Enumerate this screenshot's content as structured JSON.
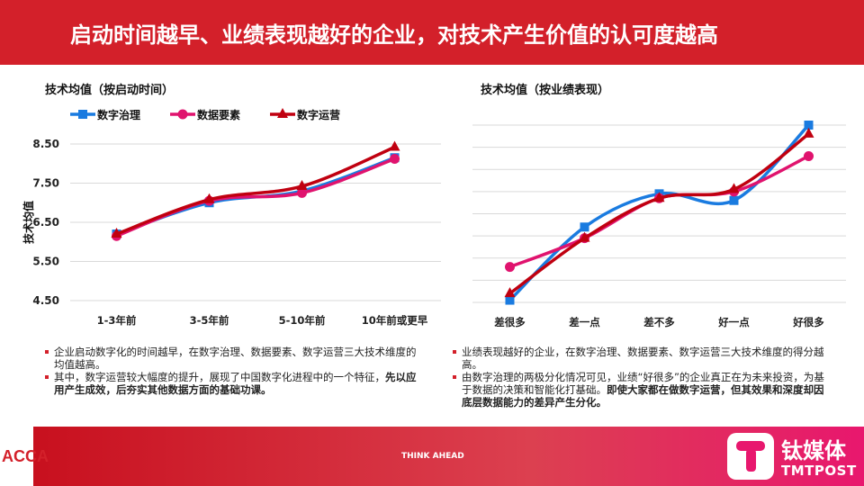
{
  "header": {
    "title": "启动时间越早、业绩表现越好的企业，对技术产生价值的认可度越高"
  },
  "colors": {
    "blue": "#1a7be0",
    "pink": "#e0136e",
    "red": "#c00010",
    "header": "#d3202a"
  },
  "chart_data": [
    {
      "type": "line",
      "title": "技术均值（按启动时间）",
      "ylabel": "技术均值",
      "ylim": [
        4.5,
        8.5
      ],
      "yticks": [
        "8.50",
        "7.50",
        "6.50",
        "5.50",
        "4.50"
      ],
      "grid": true,
      "legend": "top",
      "categories": [
        "1-3年前",
        "3-5年前",
        "5-10年前",
        "10年前或更早"
      ],
      "series": [
        {
          "name": "数字治理",
          "marker": "square",
          "values": [
            6.2,
            7.0,
            7.3,
            8.15
          ]
        },
        {
          "name": "数据要素",
          "marker": "circle",
          "values": [
            6.15,
            7.05,
            7.25,
            8.12
          ]
        },
        {
          "name": "数字运营",
          "marker": "triangle",
          "values": [
            6.2,
            7.08,
            7.42,
            8.42
          ]
        }
      ]
    },
    {
      "type": "line",
      "title": "技术均值（按业绩表现）",
      "grid": true,
      "ylim": [
        0,
        8
      ],
      "categories": [
        "差很多",
        "差一点",
        "差不多",
        "好一点",
        "好很多"
      ],
      "series": [
        {
          "marker": "square",
          "values": [
            0.1,
            3.4,
            4.9,
            4.6,
            8.0
          ]
        },
        {
          "marker": "circle",
          "values": [
            1.6,
            2.9,
            4.7,
            5.0,
            6.6
          ]
        },
        {
          "marker": "triangle",
          "values": [
            0.4,
            2.9,
            4.7,
            5.1,
            7.6
          ]
        }
      ]
    }
  ],
  "left_bullets": [
    {
      "text": "企业启动数字化的时间越早，在数字治理、数据要素、数字运营三大技术维度的均值越高。",
      "bold": ""
    },
    {
      "text": "其中，数字运营较大幅度的提升，展现了中国数字化进程中的一个特征，",
      "bold": "先以应用产生成效，后夯实其他数据方面的基础功课。"
    }
  ],
  "right_bullets": [
    {
      "text": "业绩表现越好的企业，在数字治理、数据要素、数字运营三大技术维度的得分越高。",
      "bold": ""
    },
    {
      "text": "由数字治理的两极分化情况可见，业绩“好很多”的企业真正在为未来投资，为基于数据的决策和智能化打基础。",
      "bold": "即使大家都在做数字运营，但其效果和深度却因底层数据能力的差异产生分化。"
    }
  ],
  "footer": {
    "tagline": "THINK AHEAD",
    "left_logo": "ACCA",
    "right_logo": "钛媒体",
    "right_logo_sub": "TMTPOST"
  }
}
